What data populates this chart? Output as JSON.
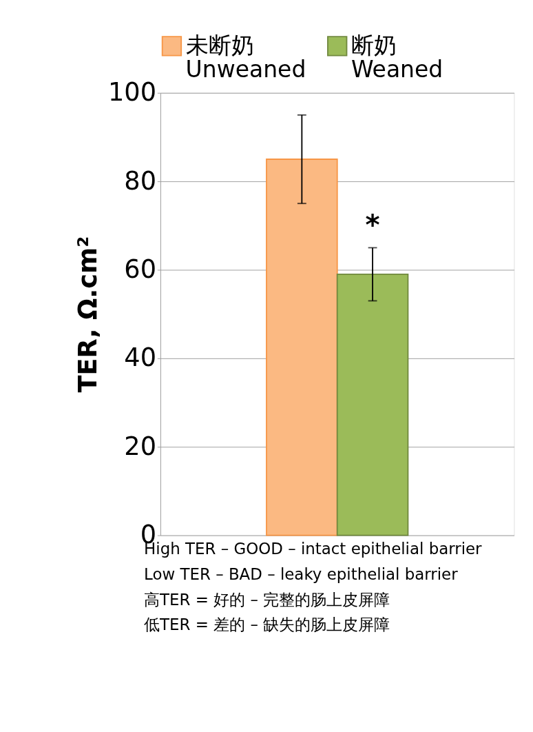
{
  "chart_data": {
    "type": "bar",
    "categories": [
      null
    ],
    "series": [
      {
        "name": "未断奶\nUnweaned",
        "color": "#fbb982",
        "values": [
          85
        ],
        "errors": [
          10
        ]
      },
      {
        "name": "断奶\nWeaned",
        "color": "#9bbb59",
        "values": [
          59
        ],
        "errors": [
          6
        ]
      }
    ],
    "ylabel": "TER, Ω.cm²",
    "ylim": [
      0,
      100
    ],
    "yticks": [
      0,
      20,
      40,
      60,
      80,
      100
    ],
    "grid": "y",
    "legend": "top",
    "annotations": [
      "*",
      "High TER – GOOD – intact epithelial barrier",
      "Low TER – BAD – leaky epithelial barrier",
      "高TER = 好的 – 完整的肠上皮屏障",
      "低TER = 差的 – 缺失的肠上皮屏障"
    ]
  }
}
